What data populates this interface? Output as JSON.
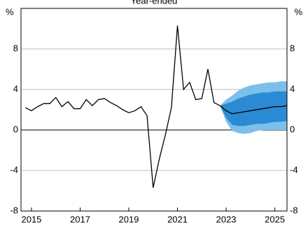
{
  "chart_data": {
    "type": "line",
    "title": "Year-ended",
    "y_unit": "%",
    "xlim": [
      2014.57,
      2025.5
    ],
    "xticks": [
      2015,
      2017,
      2019,
      2021,
      2023,
      2025
    ],
    "ylim": [
      -8,
      12
    ],
    "yticks": [
      -8,
      -4,
      0,
      4,
      8
    ],
    "grid": true,
    "series": [
      {
        "color": "#000000",
        "x": [
          2014.75,
          2015,
          2015.25,
          2015.5,
          2015.75,
          2016,
          2016.25,
          2016.5,
          2016.75,
          2017,
          2017.25,
          2017.5,
          2017.75,
          2018,
          2018.25,
          2018.5,
          2018.75,
          2019,
          2019.25,
          2019.5,
          2019.75,
          2020,
          2020.25,
          2020.5,
          2020.75,
          2021,
          2021.25,
          2021.5,
          2021.75,
          2022,
          2022.25,
          2022.5,
          2022.75
        ],
        "values": [
          2.2,
          1.9,
          2.3,
          2.6,
          2.6,
          3.2,
          2.3,
          2.8,
          2.1,
          2.1,
          3.0,
          2.4,
          3.0,
          3.1,
          2.7,
          2.4,
          2.0,
          1.7,
          1.9,
          2.3,
          1.4,
          -5.7,
          -2.9,
          -0.5,
          2.2,
          10.3,
          4.0,
          4.7,
          3.0,
          3.1,
          6.0,
          2.7,
          2.4
        ]
      },
      {
        "color": "#000000",
        "x": [
          2022.75,
          2023,
          2023.25,
          2023.5,
          2023.75,
          2024,
          2024.25,
          2024.5,
          2024.75,
          2025,
          2025.25,
          2025.5
        ],
        "values": [
          2.4,
          1.9,
          1.6,
          1.7,
          1.8,
          1.9,
          2.0,
          2.1,
          2.2,
          2.3,
          2.3,
          2.4
        ]
      }
    ],
    "bands": [
      {
        "color": "#7cc0ea",
        "x": [
          2022.75,
          2023,
          2023.25,
          2023.5,
          2023.75,
          2024,
          2024.25,
          2024.5,
          2024.75,
          2025,
          2025.25,
          2025.5
        ],
        "upper": [
          2.4,
          3.0,
          3.4,
          3.9,
          4.2,
          4.4,
          4.5,
          4.6,
          4.7,
          4.7,
          4.8,
          4.8
        ],
        "lower": [
          2.4,
          0.8,
          -0.1,
          -0.3,
          -0.4,
          -0.3,
          -0.1,
          0,
          0,
          0,
          0,
          0
        ]
      },
      {
        "color": "#2b8ad4",
        "x": [
          2022.75,
          2023,
          2023.25,
          2023.5,
          2023.75,
          2024,
          2024.25,
          2024.5,
          2024.75,
          2025,
          2025.25,
          2025.5
        ],
        "upper": [
          2.4,
          2.6,
          2.8,
          3.1,
          3.3,
          3.5,
          3.6,
          3.7,
          3.7,
          3.8,
          3.8,
          3.8
        ],
        "lower": [
          2.4,
          1.2,
          0.5,
          0.4,
          0.4,
          0.5,
          0.6,
          0.6,
          0.7,
          0.8,
          0.8,
          0.9
        ]
      }
    ]
  }
}
